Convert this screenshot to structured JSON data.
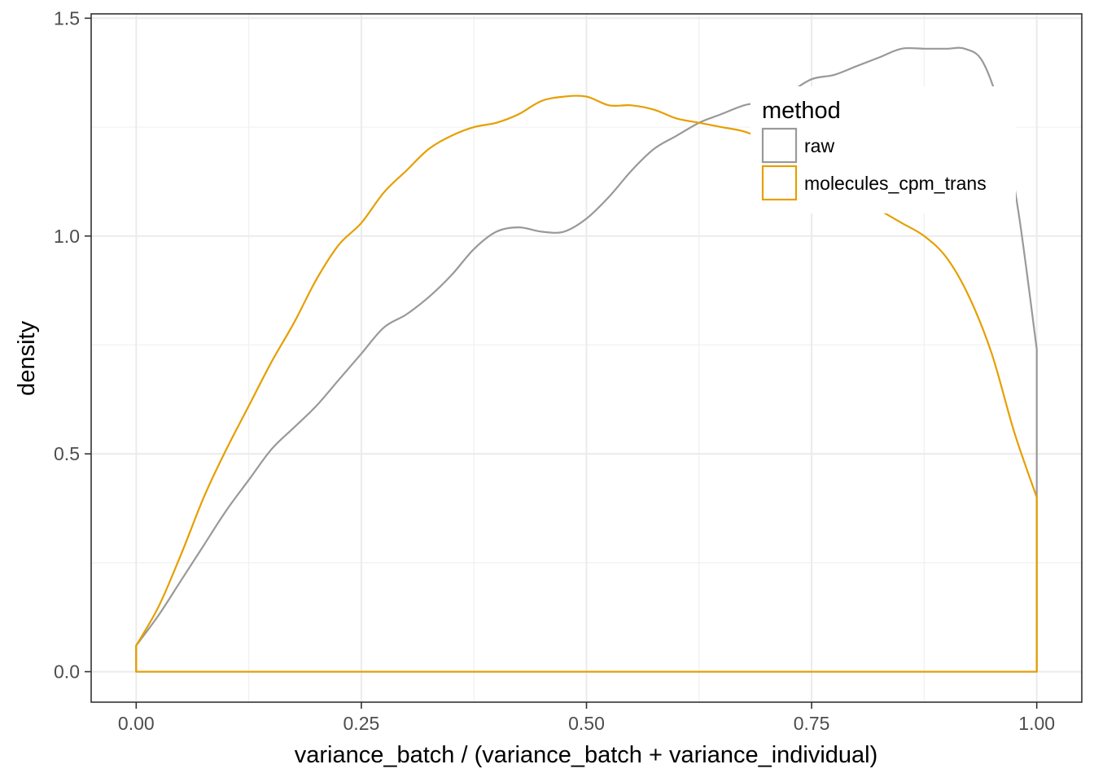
{
  "chart_data": {
    "type": "density",
    "xlabel": "variance_batch / (variance_batch + variance_individual)",
    "ylabel": "density",
    "xlim": [
      -0.05,
      1.05
    ],
    "ylim": [
      -0.07,
      1.51
    ],
    "x_ticks": [
      0,
      0.25,
      0.5,
      0.75,
      1
    ],
    "x_tick_labels": [
      "0.00",
      "0.25",
      "0.50",
      "0.75",
      "1.00"
    ],
    "y_ticks": [
      0,
      0.5,
      1,
      1.5
    ],
    "y_tick_labels": [
      "0.0",
      "0.5",
      "1.0",
      "1.5"
    ],
    "grid": true,
    "legend": {
      "title": "method",
      "position": "top-right inside"
    },
    "series": [
      {
        "name": "raw",
        "color": "#999999",
        "x": [
          0,
          0.025,
          0.05,
          0.075,
          0.1,
          0.125,
          0.15,
          0.175,
          0.2,
          0.225,
          0.25,
          0.275,
          0.3,
          0.325,
          0.35,
          0.375,
          0.4,
          0.425,
          0.45,
          0.475,
          0.5,
          0.525,
          0.55,
          0.575,
          0.6,
          0.625,
          0.65,
          0.675,
          0.7,
          0.725,
          0.75,
          0.775,
          0.8,
          0.825,
          0.85,
          0.875,
          0.9,
          0.92,
          0.94,
          0.96,
          0.98,
          1.0
        ],
        "y": [
          0.06,
          0.13,
          0.21,
          0.29,
          0.37,
          0.44,
          0.51,
          0.56,
          0.61,
          0.67,
          0.73,
          0.79,
          0.82,
          0.86,
          0.91,
          0.97,
          1.01,
          1.02,
          1.01,
          1.01,
          1.04,
          1.09,
          1.15,
          1.2,
          1.23,
          1.26,
          1.28,
          1.3,
          1.31,
          1.33,
          1.36,
          1.37,
          1.39,
          1.41,
          1.43,
          1.43,
          1.43,
          1.43,
          1.4,
          1.28,
          1.05,
          0.74
        ]
      },
      {
        "name": "molecules_cpm_trans",
        "color": "#E69F00",
        "x": [
          0,
          0.025,
          0.05,
          0.075,
          0.1,
          0.125,
          0.15,
          0.175,
          0.2,
          0.225,
          0.25,
          0.275,
          0.3,
          0.325,
          0.35,
          0.375,
          0.4,
          0.425,
          0.45,
          0.475,
          0.5,
          0.525,
          0.55,
          0.575,
          0.6,
          0.625,
          0.65,
          0.675,
          0.7,
          0.725,
          0.75,
          0.775,
          0.8,
          0.825,
          0.85,
          0.875,
          0.9,
          0.925,
          0.95,
          0.975,
          1.0
        ],
        "y": [
          0.06,
          0.15,
          0.27,
          0.4,
          0.51,
          0.61,
          0.71,
          0.8,
          0.9,
          0.98,
          1.03,
          1.1,
          1.15,
          1.2,
          1.23,
          1.25,
          1.26,
          1.28,
          1.31,
          1.32,
          1.32,
          1.3,
          1.3,
          1.29,
          1.27,
          1.26,
          1.25,
          1.24,
          1.22,
          1.2,
          1.16,
          1.12,
          1.09,
          1.06,
          1.03,
          1.0,
          0.95,
          0.86,
          0.73,
          0.55,
          0.4
        ]
      }
    ]
  }
}
